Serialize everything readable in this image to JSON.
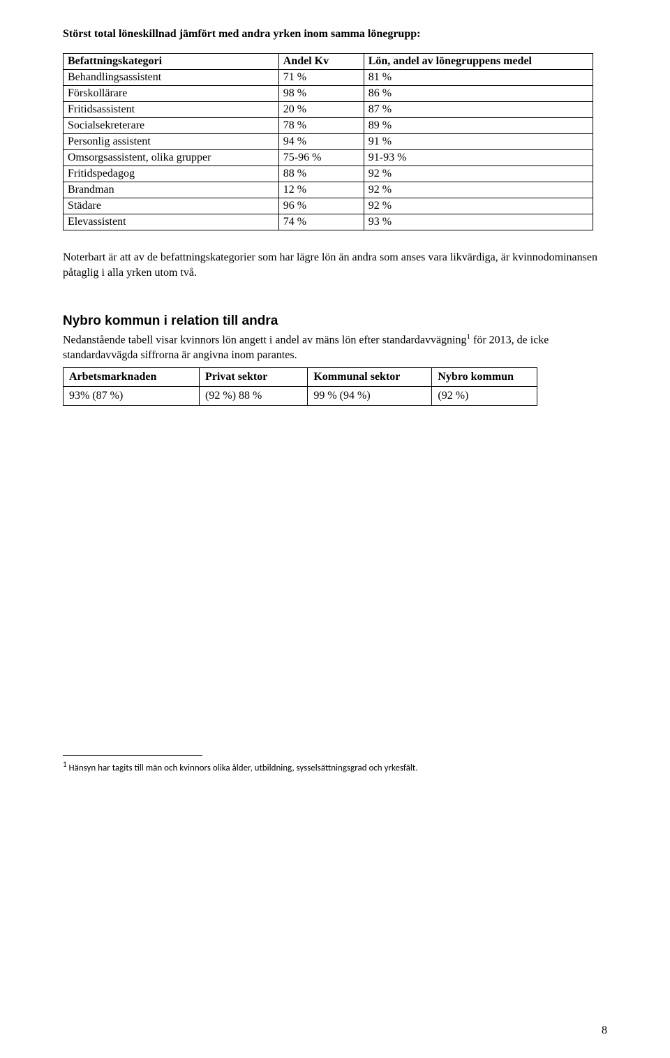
{
  "heading1": "Störst total löneskillnad jämfört med andra yrken inom samma lönegrupp:",
  "table1": {
    "headers": {
      "c1": "Befattningskategori",
      "c2": "Andel Kv",
      "c3": "Lön, andel av lönegruppens medel"
    },
    "rows": [
      {
        "c1": "Behandlingsassistent",
        "c2": "71 %",
        "c3": "81 %"
      },
      {
        "c1": "Förskollärare",
        "c2": "98 %",
        "c3": "86 %"
      },
      {
        "c1": "Fritidsassistent",
        "c2": "20 %",
        "c3": "87 %"
      },
      {
        "c1": "Socialsekreterare",
        "c2": "78 %",
        "c3": "89 %"
      },
      {
        "c1": "Personlig assistent",
        "c2": "94 %",
        "c3": "91 %"
      },
      {
        "c1": "Omsorgsassistent, olika grupper",
        "c2": "75-96 %",
        "c3": "91-93 %"
      },
      {
        "c1": "Fritidspedagog",
        "c2": "88 %",
        "c3": "92 %"
      },
      {
        "c1": "Brandman",
        "c2": "12 %",
        "c3": "92 %"
      },
      {
        "c1": "Städare",
        "c2": "96 %",
        "c3": "92 %"
      },
      {
        "c1": "Elevassistent",
        "c2": "74 %",
        "c3": "93 %"
      }
    ]
  },
  "para1": "Noterbart är att av de befattningskategorier som har lägre lön än andra som anses vara likvärdiga, är kvinnodominansen påtaglig i alla yrken utom två.",
  "section2_title": "Nybro kommun i relation till andra",
  "para2_pre": "Nedanstående tabell visar kvinnors lön angett i andel av mäns lön efter standardavvägning",
  "para2_sup": "1",
  "para2_post": " för 2013, de icke standardavvägda siffrorna är angivna inom parantes.",
  "table2": {
    "headers": {
      "c1": "Arbetsmarknaden",
      "c2": "Privat sektor",
      "c3": "Kommunal sektor",
      "c4": "Nybro kommun"
    },
    "row": {
      "c1": "93% (87 %)",
      "c2": "(92 %) 88 %",
      "c3": "99 % (94 %)",
      "c4": "(92 %)"
    }
  },
  "footnote_sup": "1",
  "footnote_text": " Hänsyn har tagits till män och kvinnors olika ålder, utbildning, sysselsättningsgrad och yrkesfält.",
  "page_number": "8"
}
